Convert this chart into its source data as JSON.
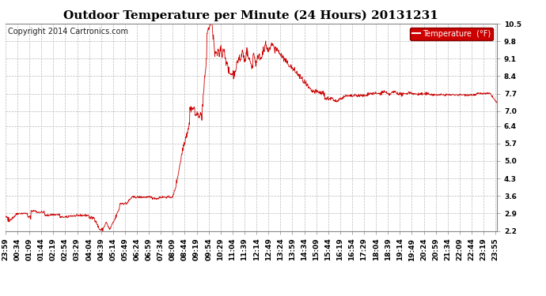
{
  "title": "Outdoor Temperature per Minute (24 Hours) 20131231",
  "copyright": "Copyright 2014 Cartronics.com",
  "legend_label": "Temperature  (°F)",
  "line_color": "#cc0000",
  "legend_bg": "#cc0000",
  "legend_text_color": "#ffffff",
  "background_color": "#ffffff",
  "plot_bg": "#ffffff",
  "grid_color": "#bbbbbb",
  "ytick_labels": [
    "2.2",
    "2.9",
    "3.6",
    "4.3",
    "5.0",
    "5.7",
    "6.4",
    "7.0",
    "7.7",
    "8.4",
    "9.1",
    "9.8",
    "10.5"
  ],
  "ymin": 2.2,
  "ymax": 10.5,
  "xtick_labels": [
    "23:59",
    "00:34",
    "01:09",
    "01:44",
    "02:19",
    "02:54",
    "03:29",
    "04:04",
    "04:39",
    "05:14",
    "05:49",
    "06:24",
    "06:59",
    "07:34",
    "08:09",
    "08:44",
    "09:19",
    "09:54",
    "10:29",
    "11:04",
    "11:39",
    "12:14",
    "12:49",
    "13:24",
    "13:59",
    "14:34",
    "15:09",
    "15:44",
    "16:19",
    "16:54",
    "17:29",
    "18:04",
    "18:39",
    "19:14",
    "19:49",
    "20:24",
    "20:59",
    "21:34",
    "22:09",
    "22:44",
    "23:19",
    "23:55"
  ],
  "num_points": 1440,
  "title_fontsize": 11,
  "axis_fontsize": 6.5,
  "copyright_fontsize": 7
}
